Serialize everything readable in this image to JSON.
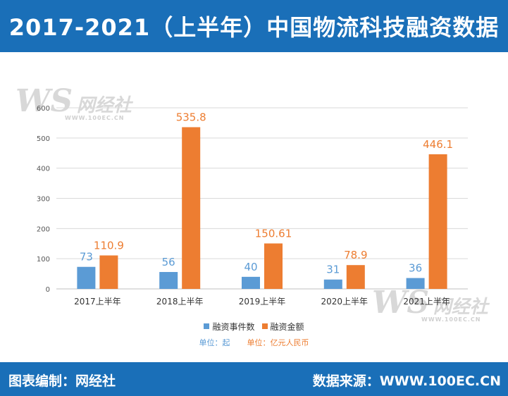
{
  "header": {
    "title": "2017-2021（上半年）中国物流科技融资数据"
  },
  "footer": {
    "left_credit": "图表编制：网经社",
    "right_credit": "数据来源：WWW.100EC.CN"
  },
  "watermark": {
    "ws": "WS",
    "brand": "网经社",
    "domain": "WWW.100EC.CN"
  },
  "units": {
    "left": "单位：起",
    "right": "单位：亿元人民币"
  },
  "colors": {
    "header_bg": "#1a6fb8",
    "series_events": "#5b9bd5",
    "series_amount": "#ed7d31"
  },
  "chart_data": {
    "type": "bar",
    "categories": [
      "2017上半年",
      "2018上半年",
      "2019上半年",
      "2020上半年",
      "2021上半年"
    ],
    "series": [
      {
        "name": "融资事件数",
        "values": [
          73,
          56,
          40,
          31,
          36
        ],
        "labels": [
          "73",
          "56",
          "40",
          "31",
          "36"
        ],
        "color": "#5b9bd5"
      },
      {
        "name": "融资金额",
        "values": [
          110.9,
          535.8,
          150.61,
          78.9,
          446.1
        ],
        "labels": [
          "110.9",
          "535.8",
          "150.61",
          "78.9",
          "446.1"
        ],
        "color": "#ed7d31"
      }
    ],
    "ylim": [
      0,
      600
    ],
    "yticks": [
      0,
      100,
      200,
      300,
      400,
      500,
      600
    ],
    "grid": true,
    "legend_position": "bottom"
  }
}
